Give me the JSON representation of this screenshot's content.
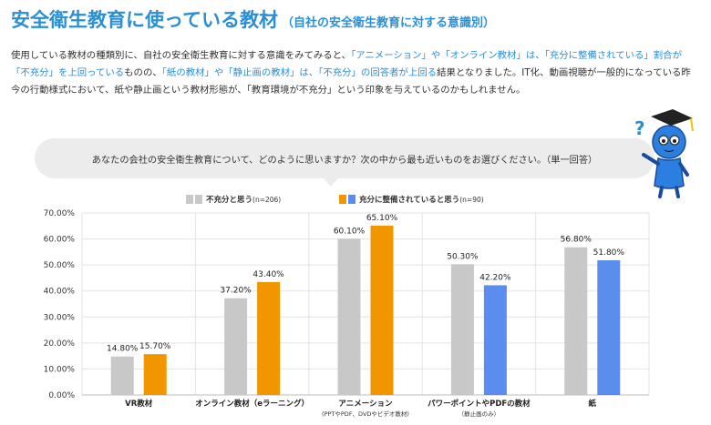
{
  "header": {
    "title": "安全衛生教育に使っている教材",
    "subtitle": "（自社の安全衛生教育に対する意識別）"
  },
  "body_text": [
    {
      "t": "使用している教材の種類別に、自社の安全衛生教育に対する意識をみてみると、",
      "hl": false
    },
    {
      "t": "「アニメーション」や「オンライン教材」は、「充分に整備されている」割合が「不充分」を上回っている",
      "hl": true
    },
    {
      "t": "ものの、",
      "hl": false
    },
    {
      "t": "「紙の教材」や「静止画の教材」は、「不充分」の回答者が上回る",
      "hl": true
    },
    {
      "t": "結果となりました。IT化、動画視聴が一般的になっている昨今の行動様式において、紙や静止画という教材形態が、「教育環境が不充分」という印象を与えているのかもしれません。",
      "hl": false
    }
  ],
  "question": "あなたの会社の安全衛生教育について、どのように思いますか？次の中から最も近いものをお選びください。（単一回答）",
  "mascot": {
    "symbol": "?"
  },
  "colors": {
    "gray": "#c8c8c8",
    "orange": "#f29600",
    "blue": "#5b8def",
    "title": "#2a8fd4"
  },
  "legend": [
    {
      "label": "不充分と思う",
      "n": "(n=206)"
    },
    {
      "label": "充分に整備されていると思う",
      "n": "(n=90)"
    }
  ],
  "chart_data": {
    "type": "bar",
    "ylim": [
      0,
      70
    ],
    "yticks": [
      0,
      10,
      20,
      30,
      40,
      50,
      60,
      70
    ],
    "ytick_labels": [
      "0.00%",
      "10.00%",
      "20.00%",
      "30.00%",
      "40.00%",
      "50.00%",
      "60.00%",
      "70.00%"
    ],
    "categories": [
      {
        "label": "VR教材",
        "sublabel": ""
      },
      {
        "label": "オンライン教材（eラーニング）",
        "sublabel": ""
      },
      {
        "label": "アニメーション",
        "sublabel": "(PPTやPDF、DVDやビデオ教材)"
      },
      {
        "label": "パワーポイントやPDFの教材",
        "sublabel": "（静止画のみ）"
      },
      {
        "label": "紙",
        "sublabel": ""
      }
    ],
    "series": [
      {
        "name": "不充分と思う",
        "n": "n=206",
        "values": [
          14.8,
          37.2,
          60.1,
          50.3,
          56.8
        ],
        "labels": [
          "14.80%",
          "37.20%",
          "60.10%",
          "50.30%",
          "56.80%"
        ]
      },
      {
        "name": "充分に整備されていると思う",
        "n": "n=90",
        "values": [
          15.7,
          43.4,
          65.1,
          42.2,
          51.8
        ],
        "labels": [
          "15.70%",
          "43.40%",
          "65.10%",
          "42.20%",
          "51.80%"
        ]
      }
    ],
    "second_series_colors": [
      "orange",
      "orange",
      "orange",
      "blue",
      "blue"
    ],
    "grid": true
  }
}
